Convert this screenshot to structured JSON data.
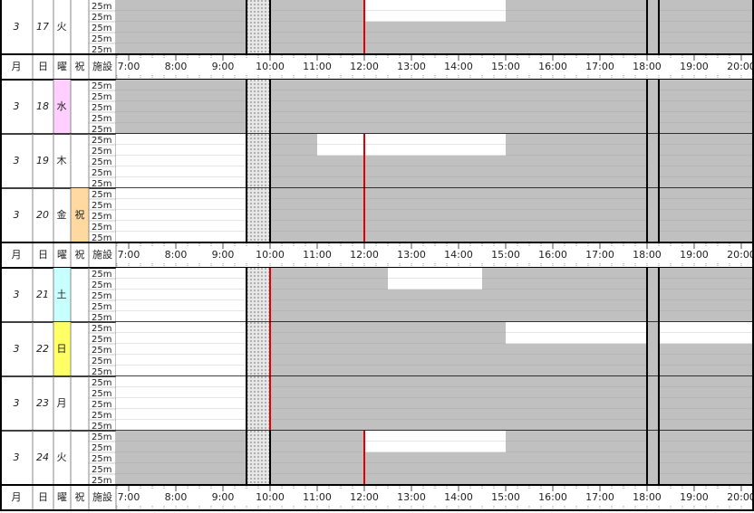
{
  "header": {
    "month": "月",
    "day": "日",
    "weekday": "曜",
    "holiday": "祝",
    "facility": "施設",
    "xlim": [
      6.73,
      20.27
    ],
    "xticks": [
      {
        "value": 7,
        "label": "7:00"
      },
      {
        "value": 8,
        "label": "8:00"
      },
      {
        "value": 9,
        "label": "9:00"
      },
      {
        "value": 10,
        "label": "10:00"
      },
      {
        "value": 11,
        "label": "11:00"
      },
      {
        "value": 12,
        "label": "12:00"
      },
      {
        "value": 13,
        "label": "13:00"
      },
      {
        "value": 14,
        "label": "14:00"
      },
      {
        "value": 15,
        "label": "15:00"
      },
      {
        "value": 16,
        "label": "16:00"
      },
      {
        "value": 17,
        "label": "17:00"
      },
      {
        "value": 18,
        "label": "18:00"
      },
      {
        "value": 19,
        "label": "19:00"
      },
      {
        "value": 20,
        "label": "20:00"
      }
    ],
    "closed_periods": [
      [
        9.5,
        10
      ],
      [
        18,
        18.25
      ]
    ]
  },
  "days": [
    {
      "month": "3",
      "day": "17",
      "weekday": "火",
      "now": 12,
      "lanes": [
        {
          "label": "25m",
          "open": [
            [
              12,
              15
            ]
          ]
        },
        {
          "label": "25m",
          "open": [
            [
              12,
              15
            ]
          ]
        },
        {
          "label": "25m",
          "open": []
        },
        {
          "label": "25m",
          "open": []
        },
        {
          "label": "25m",
          "open": []
        }
      ]
    },
    {
      "month": "3",
      "day": "18",
      "weekday": "水",
      "weekday_bg": "#ffd0ff",
      "lanes": [
        {
          "label": "25m",
          "open": []
        },
        {
          "label": "25m",
          "open": []
        },
        {
          "label": "25m",
          "open": []
        },
        {
          "label": "25m",
          "open": []
        },
        {
          "label": "25m",
          "open": []
        }
      ]
    },
    {
      "month": "3",
      "day": "19",
      "weekday": "木",
      "now": 12,
      "lanes": [
        {
          "label": "25m",
          "open": [
            [
              6.73,
              9.5
            ],
            [
              11,
              15
            ]
          ]
        },
        {
          "label": "25m",
          "open": [
            [
              6.73,
              9.5
            ],
            [
              11,
              15
            ]
          ]
        },
        {
          "label": "25m",
          "open": [
            [
              6.73,
              9.5
            ]
          ]
        },
        {
          "label": "25m",
          "open": [
            [
              6.73,
              9.5
            ]
          ]
        },
        {
          "label": "25m",
          "open": [
            [
              6.73,
              9.5
            ]
          ]
        }
      ]
    },
    {
      "month": "3",
      "day": "20",
      "weekday": "金",
      "holiday": "祝",
      "holiday_bg": "#ffd9a0",
      "holiday_color": "#e00000",
      "now": 12,
      "lanes": [
        {
          "label": "25m",
          "open": [
            [
              6.73,
              9.5
            ]
          ]
        },
        {
          "label": "25m",
          "open": [
            [
              6.73,
              9.5
            ]
          ]
        },
        {
          "label": "25m",
          "open": [
            [
              6.73,
              9.5
            ]
          ]
        },
        {
          "label": "25m",
          "open": [
            [
              6.73,
              9.5
            ]
          ]
        },
        {
          "label": "25m",
          "open": [
            [
              6.73,
              9.5
            ]
          ]
        }
      ]
    },
    {
      "month": "3",
      "day": "21",
      "weekday": "土",
      "weekday_bg": "#c8ffff",
      "now": 10,
      "lanes": [
        {
          "label": "25m",
          "open": [
            [
              6.73,
              9.5
            ],
            [
              12.5,
              14.5
            ]
          ]
        },
        {
          "label": "25m",
          "open": [
            [
              6.73,
              9.5
            ],
            [
              12.5,
              14.5
            ]
          ]
        },
        {
          "label": "25m",
          "open": [
            [
              6.73,
              9.5
            ]
          ]
        },
        {
          "label": "25m",
          "open": [
            [
              6.73,
              9.5
            ]
          ]
        },
        {
          "label": "25m",
          "open": [
            [
              6.73,
              9.5
            ]
          ]
        }
      ]
    },
    {
      "month": "3",
      "day": "22",
      "weekday": "日",
      "weekday_bg": "#ffff66",
      "weekday_color": "#e00000",
      "now": 10,
      "lanes": [
        {
          "label": "25m",
          "open": [
            [
              6.73,
              9.5
            ],
            [
              15,
              18
            ],
            [
              18.25,
              20.27
            ]
          ]
        },
        {
          "label": "25m",
          "open": [
            [
              6.73,
              9.5
            ],
            [
              15,
              18
            ],
            [
              18.25,
              20.27
            ]
          ]
        },
        {
          "label": "25m",
          "open": [
            [
              6.73,
              9.5
            ]
          ]
        },
        {
          "label": "25m",
          "open": [
            [
              6.73,
              9.5
            ]
          ]
        },
        {
          "label": "25m",
          "open": [
            [
              6.73,
              9.5
            ]
          ]
        }
      ]
    },
    {
      "month": "3",
      "day": "23",
      "weekday": "月",
      "now": 10,
      "lanes": [
        {
          "label": "25m",
          "open": [
            [
              6.73,
              9.5
            ]
          ]
        },
        {
          "label": "25m",
          "open": [
            [
              6.73,
              9.5
            ]
          ]
        },
        {
          "label": "25m",
          "open": [
            [
              6.73,
              9.5
            ]
          ]
        },
        {
          "label": "25m",
          "open": [
            [
              6.73,
              9.5
            ]
          ]
        },
        {
          "label": "25m",
          "open": [
            [
              6.73,
              9.5
            ]
          ]
        }
      ]
    },
    {
      "month": "3",
      "day": "24",
      "weekday": "火",
      "now": 12,
      "lanes": [
        {
          "label": "25m",
          "open": [
            [
              12,
              15
            ]
          ]
        },
        {
          "label": "25m",
          "open": [
            [
              12,
              15
            ]
          ]
        },
        {
          "label": "25m",
          "open": []
        },
        {
          "label": "25m",
          "open": []
        },
        {
          "label": "25m",
          "open": []
        }
      ]
    }
  ]
}
